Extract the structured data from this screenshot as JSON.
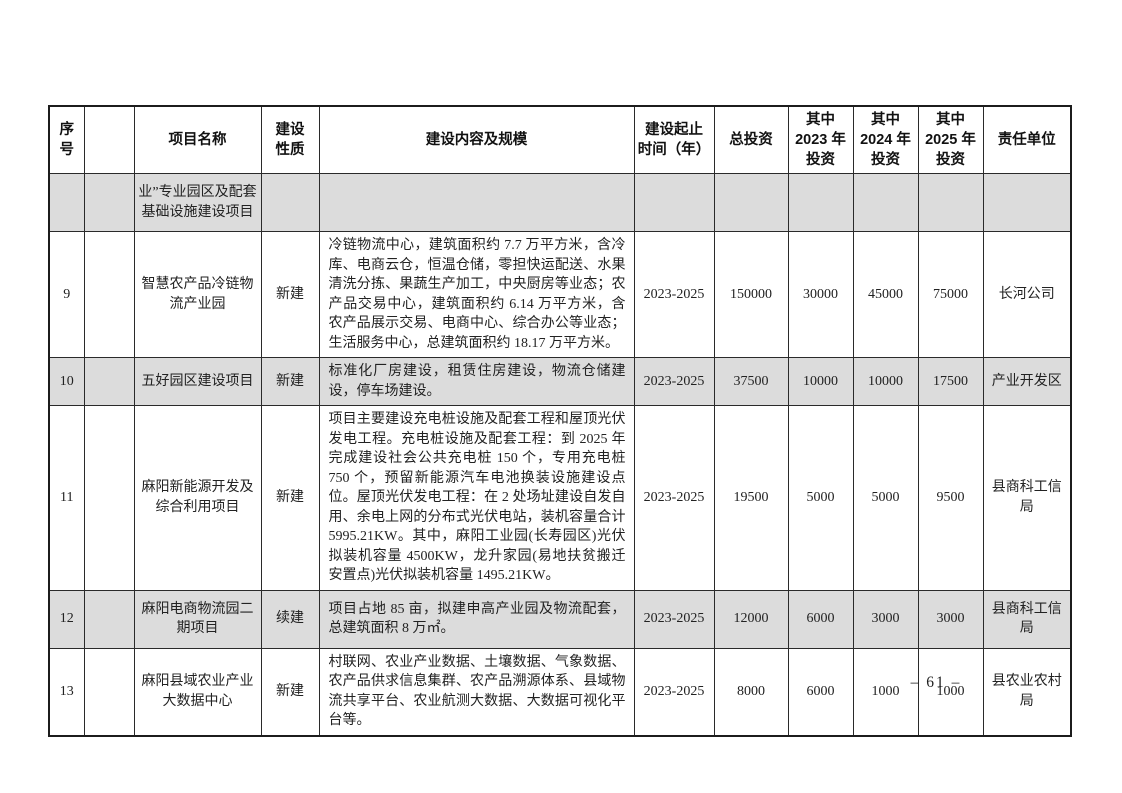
{
  "page": {
    "footer_page_number": "– 61 –"
  },
  "table": {
    "headers": [
      "序\n号",
      "",
      "项目名称",
      "建设\n性质",
      "建设内容及规模",
      "建设起止\n时间（年）",
      "总投资",
      "其中\n2023 年\n投资",
      "其中\n2024 年\n投资",
      "其中\n2025 年\n投资",
      "责任单位"
    ],
    "rows": [
      {
        "shaded": true,
        "cells": [
          "",
          "",
          "业”专业园区及配套基础设施建设项目",
          "",
          "",
          "",
          "",
          "",
          "",
          "",
          ""
        ]
      },
      {
        "shaded": false,
        "cells": [
          "9",
          "",
          "智慧农产品冷链物流产业园",
          "新建",
          "冷链物流中心，建筑面积约 7.7 万平方米，含冷库、电商云仓，恒温仓储，零担快运配送、水果清洗分拣、果蔬生产加工，中央厨房等业态；农产品交易中心，建筑面积约 6.14 万平方米，含农产品展示交易、电商中心、综合办公等业态；生活服务中心，总建筑面积约 18.17 万平方米。",
          "2023-2025",
          "150000",
          "30000",
          "45000",
          "75000",
          "长河公司"
        ]
      },
      {
        "shaded": true,
        "cells": [
          "10",
          "",
          "五好园区建设项目",
          "新建",
          "标准化厂房建设，租赁住房建设，物流仓储建设，停车场建设。",
          "2023-2025",
          "37500",
          "10000",
          "10000",
          "17500",
          "产业开发区"
        ]
      },
      {
        "shaded": false,
        "cells": [
          "11",
          "",
          "麻阳新能源开发及综合利用项目",
          "新建",
          "项目主要建设充电桩设施及配套工程和屋顶光伏发电工程。充电桩设施及配套工程：到 2025 年完成建设社会公共充电桩 150 个，专用充电桩 750 个，预留新能源汽车电池换装设施建设点位。屋顶光伏发电工程：在 2 处场址建设自发自用、余电上网的分布式光伏电站，装机容量合计 5995.21KW。其中，麻阳工业园(长寿园区)光伏拟装机容量 4500KW，龙升家园(易地扶贫搬迁安置点)光伏拟装机容量 1495.21KW。",
          "2023-2025",
          "19500",
          "5000",
          "5000",
          "9500",
          "县商科工信局"
        ]
      },
      {
        "shaded": true,
        "cells": [
          "12",
          "",
          "麻阳电商物流园二期项目",
          "续建",
          "项目占地 85 亩，拟建申高产业园及物流配套，总建筑面积 8 万㎡。",
          "2023-2025",
          "12000",
          "6000",
          "3000",
          "3000",
          "县商科工信局"
        ]
      },
      {
        "shaded": false,
        "cells": [
          "13",
          "",
          "麻阳县域农业产业大数据中心",
          "新建",
          "村联网、农业产业数据、土壤数据、气象数据、农产品供求信息集群、农产品溯源体系、县域物流共享平台、农业航测大数据、大数据可视化平台等。",
          "2023-2025",
          "8000",
          "6000",
          "1000",
          "1000",
          "县农业农村局"
        ]
      }
    ]
  }
}
